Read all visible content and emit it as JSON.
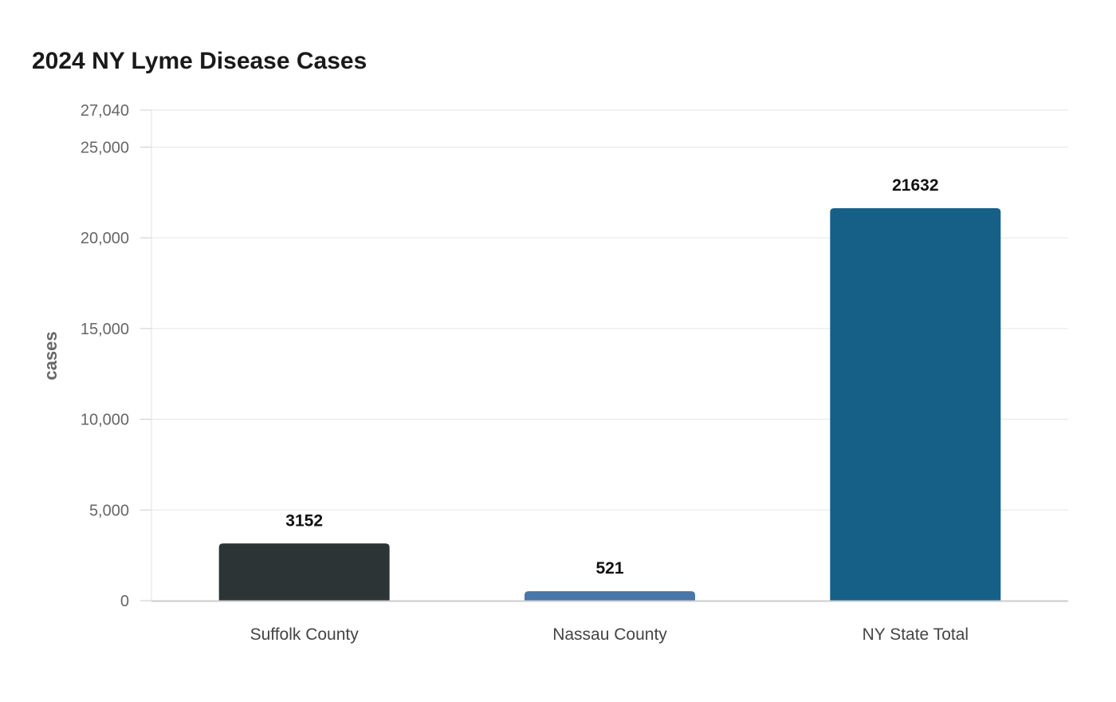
{
  "chart_data": {
    "type": "bar",
    "title": "2024 NY Lyme Disease Cases",
    "xlabel": "",
    "ylabel": "cases",
    "categories": [
      "Suffolk County",
      "Nassau County",
      "NY State Total"
    ],
    "values": [
      3152,
      521,
      21632
    ],
    "data_labels": [
      "3152",
      "521",
      "21632"
    ],
    "colors": [
      "#2d3436",
      "#4a76a8",
      "#166088"
    ],
    "ylim": [
      0,
      27040
    ],
    "yticks": [
      0,
      5000,
      10000,
      15000,
      20000,
      25000,
      27040
    ],
    "ytick_labels": [
      "0",
      "5,000",
      "10,000",
      "15,000",
      "20,000",
      "25,000",
      "27,040"
    ],
    "grid": true,
    "legend": "none"
  }
}
